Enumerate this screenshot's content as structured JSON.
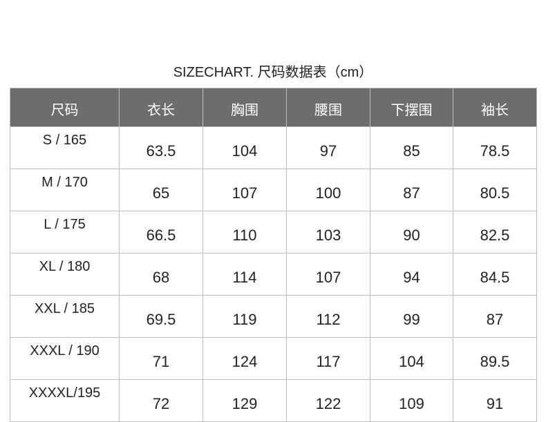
{
  "title": "SIZECHART. 尺码数据表（cm）",
  "headers": [
    "尺码",
    "衣长",
    "胸围",
    "腰围",
    "下摆围",
    "袖长"
  ],
  "rows": [
    [
      "S / 165",
      "63.5",
      "104",
      "97",
      "85",
      "78.5"
    ],
    [
      "M / 170",
      "65",
      "107",
      "100",
      "87",
      "80.5"
    ],
    [
      "L / 175",
      "66.5",
      "110",
      "103",
      "90",
      "82.5"
    ],
    [
      "XL / 180",
      "68",
      "114",
      "107",
      "94",
      "84.5"
    ],
    [
      "XXL / 185",
      "69.5",
      "119",
      "112",
      "99",
      "87"
    ],
    [
      "XXXL / 190",
      "71",
      "124",
      "117",
      "104",
      "89.5"
    ],
    [
      "XXXXL/195",
      "72",
      "129",
      "122",
      "109",
      "91"
    ]
  ]
}
